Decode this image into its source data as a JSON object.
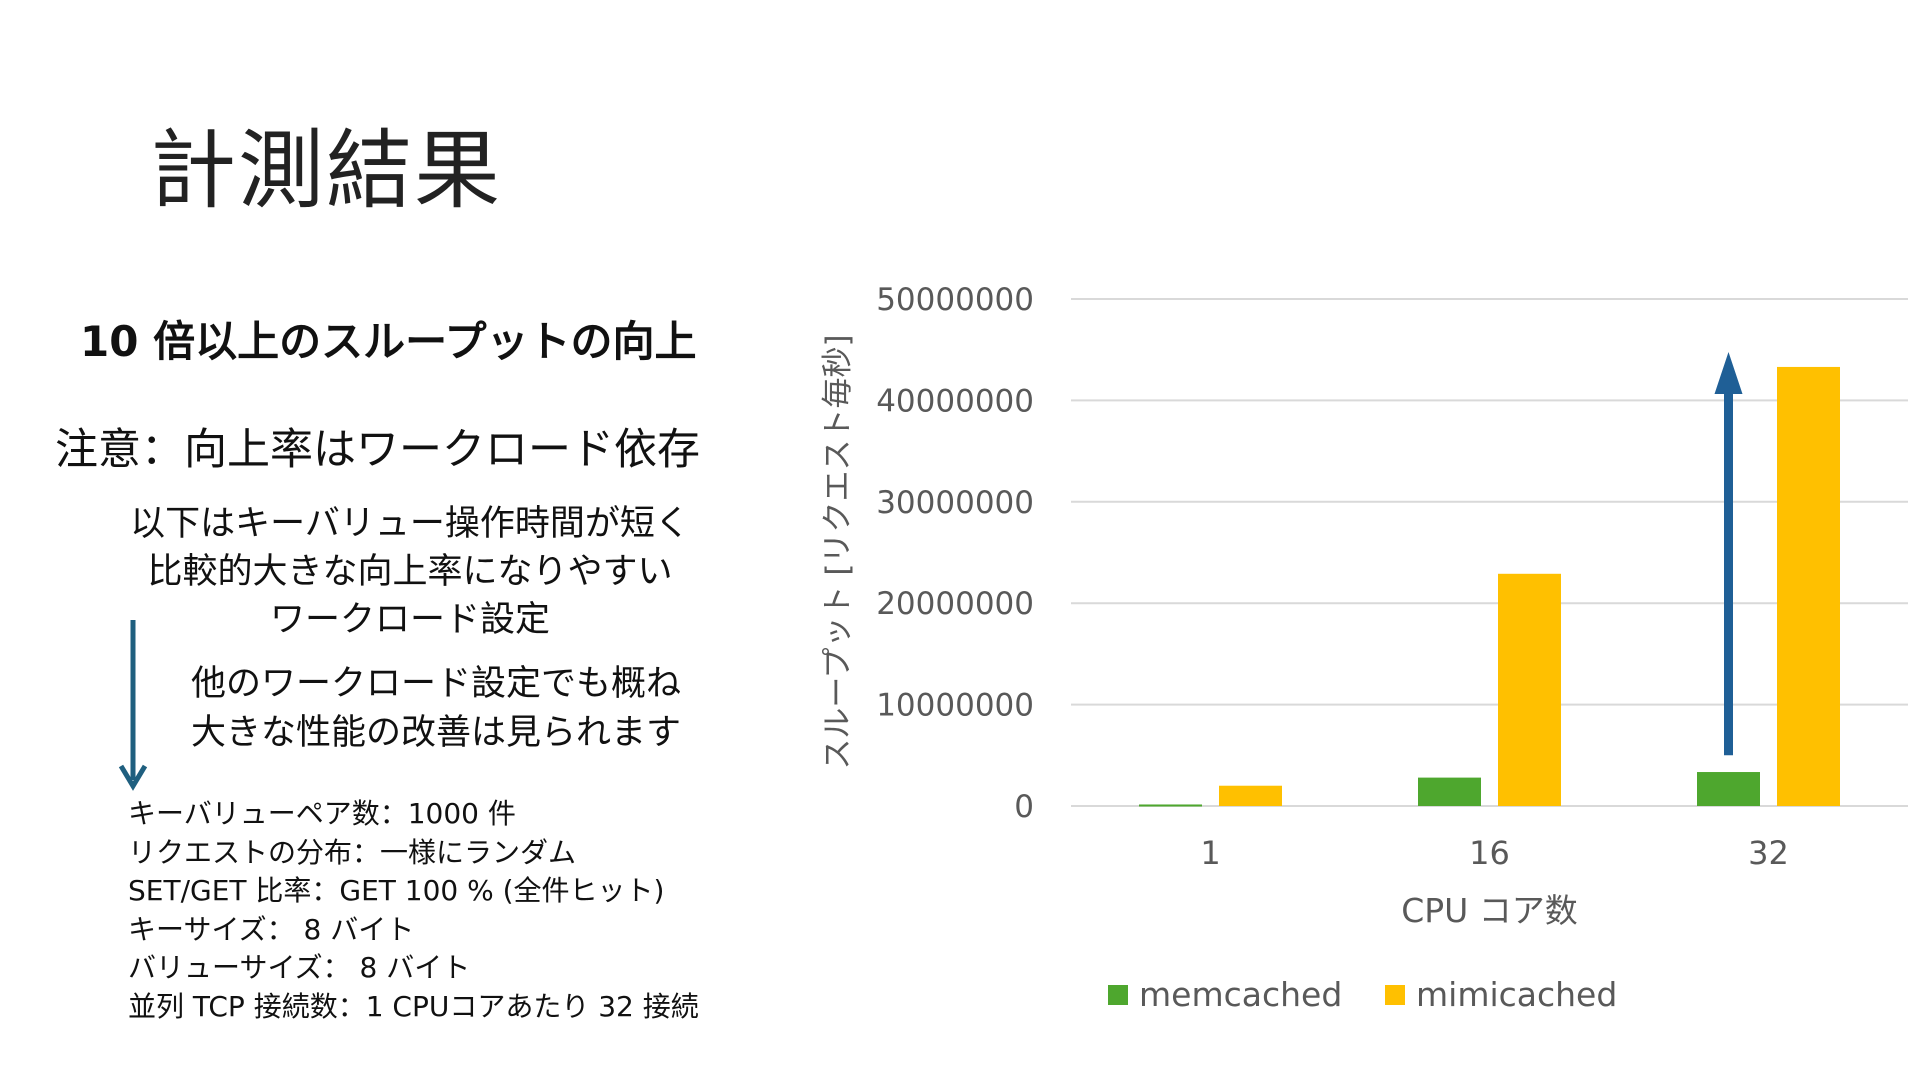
{
  "slide": {
    "title": "計測結果",
    "headline": "10 倍以上のスループットの向上",
    "note": "注意：向上率はワークロード依存",
    "description_lines": [
      "以下はキーバリュー操作時間が短く",
      "比較的大きな向上率になりやすい",
      "ワークロード設定"
    ],
    "other_lines": [
      "他のワークロード設定でも概ね",
      "大きな性能の改善は見られます"
    ],
    "settings": [
      "キーバリューペア数：1000 件",
      "リクエストの分布：一様にランダム",
      "SET/GET 比率：GET 100 % (全件ヒット)",
      "キーサイズ： 8 バイト",
      "バリューサイズ： 8 バイト",
      "並列 TCP 接続数：1 CPUコアあたり 32 接続"
    ],
    "arrow_color": "#1f5f7f"
  },
  "chart_data": {
    "type": "bar",
    "title": "",
    "xlabel": "CPU コア数",
    "ylabel": "スループット [リクエスト毎秒]",
    "categories": [
      "1",
      "16",
      "32"
    ],
    "ylim": [
      0,
      50000000
    ],
    "yticks": [
      "0",
      "10000000",
      "20000000",
      "30000000",
      "40000000",
      "50000000"
    ],
    "grid": true,
    "legend_position": "bottom",
    "series": [
      {
        "name": "memcached",
        "color": "#4ea72e",
        "values": [
          150000,
          2800000,
          3350000
        ]
      },
      {
        "name": "mimicached",
        "color": "#ffc000",
        "values": [
          2000000,
          22900000,
          43300000
        ]
      }
    ],
    "annotation_arrow": {
      "category": "32",
      "from": 5000000,
      "to": 43000000,
      "color": "#1f5f96"
    }
  }
}
